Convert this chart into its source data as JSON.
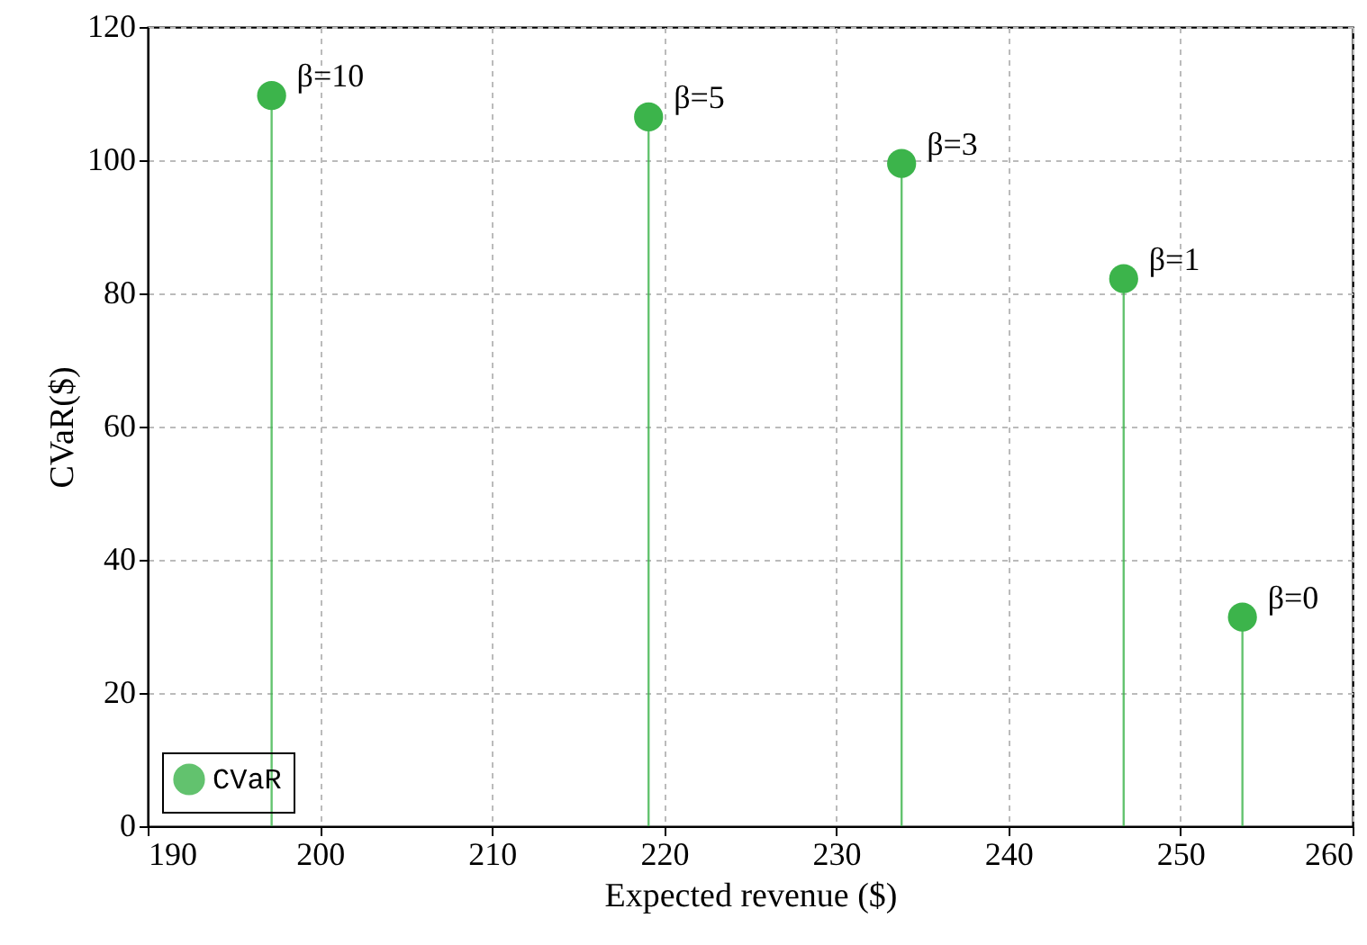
{
  "chart_data": {
    "type": "lollipop",
    "xlabel": "Expected revenue ($)",
    "ylabel": "CVaR($)",
    "x": [
      197.2,
      219.1,
      233.8,
      246.7,
      253.6
    ],
    "series": [
      {
        "name": "CVaR",
        "color": "#3cb44b",
        "values": [
          109.7,
          106.5,
          99.5,
          82.2,
          31.4
        ]
      }
    ],
    "annotations": [
      {
        "text": "β=10",
        "x": 197.2,
        "y": 109.7
      },
      {
        "text": "β=5",
        "x": 219.1,
        "y": 106.5
      },
      {
        "text": "β=3",
        "x": 233.8,
        "y": 99.5
      },
      {
        "text": "β=1",
        "x": 246.7,
        "y": 82.2
      },
      {
        "text": "β=0",
        "x": 253.6,
        "y": 31.4
      }
    ],
    "xlim": [
      190,
      260
    ],
    "xticks": [
      190,
      200,
      210,
      220,
      230,
      240,
      250,
      260
    ],
    "ylim": [
      0,
      120
    ],
    "yticks": [
      0,
      20,
      40,
      60,
      80,
      100,
      120
    ],
    "grid": true,
    "legend": "bottom left",
    "marker": "circle"
  }
}
